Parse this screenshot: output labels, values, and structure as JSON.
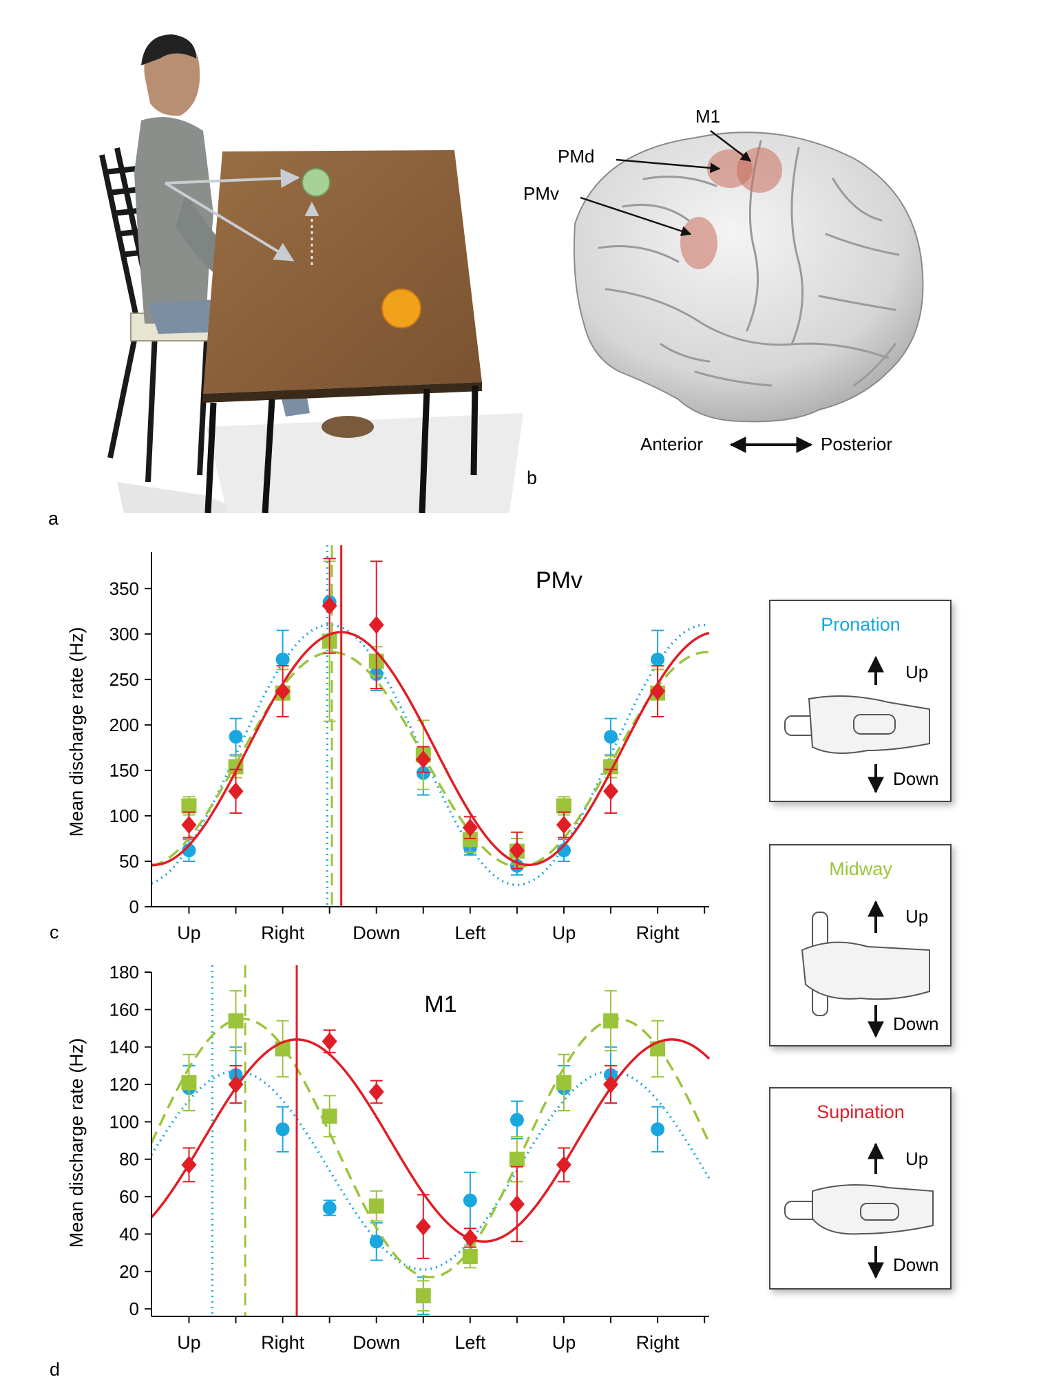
{
  "panel_letters": {
    "a": "a",
    "b": "b",
    "c": "c",
    "d": "d"
  },
  "brain": {
    "labels": {
      "m1": "M1",
      "pmd": "PMd",
      "pmv": "PMv"
    },
    "axis": {
      "anterior": "Anterior",
      "posterior": "Posterior"
    }
  },
  "insets": [
    {
      "title": "Pronation",
      "color": "#1aa7df",
      "up": "Up",
      "down": "Down"
    },
    {
      "title": "Midway",
      "color": "#9cc43b",
      "up": "Up",
      "down": "Down"
    },
    {
      "title": "Supination",
      "color": "#e11d25",
      "up": "Up",
      "down": "Down"
    }
  ],
  "colors": {
    "pronation": "#1aa7df",
    "midway": "#9cc43b",
    "supination": "#e11d25",
    "axis": "#111111"
  },
  "chart_data": [
    {
      "type": "line",
      "title": "PMv",
      "ylabel": "Mean discharge rate (Hz)",
      "ylim": [
        0,
        390
      ],
      "yticks": [
        0,
        50,
        100,
        150,
        200,
        250,
        300,
        350
      ],
      "xticks": [
        0,
        1,
        2,
        3,
        4,
        5,
        6,
        7,
        8,
        9,
        10,
        11
      ],
      "xticklabels": [
        "Up",
        "",
        "Right",
        "",
        "Down",
        "",
        "Left",
        "",
        "Up",
        "",
        "Right",
        ""
      ],
      "xlim": [
        -0.8,
        11.1
      ],
      "series": [
        {
          "name": "Pronation",
          "marker": "circle",
          "line": "dotted",
          "values": [
            62,
            187,
            272,
            335,
            256,
            147,
            65,
            45,
            62,
            187,
            272
          ],
          "errors": [
            12,
            20,
            32,
            48,
            18,
            24,
            8,
            10,
            12,
            20,
            32
          ],
          "fit": {
            "mean": 167,
            "amp": 143,
            "peak": 3.0
          },
          "peak_line": 2.95
        },
        {
          "name": "Midway",
          "marker": "square",
          "line": "dashed",
          "values": [
            111,
            154,
            235,
            292,
            270,
            167,
            74,
            61,
            111,
            154,
            235
          ],
          "errors": [
            10,
            12,
            26,
            88,
            16,
            38,
            14,
            14,
            10,
            12,
            26
          ],
          "fit": {
            "mean": 162,
            "amp": 118,
            "peak": 3.05
          },
          "peak_line": 3.05
        },
        {
          "name": "Supination",
          "marker": "diamond",
          "line": "solid",
          "values": [
            90,
            127,
            237,
            331,
            310,
            162,
            87,
            62,
            90,
            127,
            237
          ],
          "errors": [
            14,
            24,
            28,
            52,
            70,
            14,
            12,
            20,
            14,
            24,
            28
          ],
          "fit": {
            "mean": 174,
            "amp": 128,
            "peak": 3.25
          },
          "peak_line": 3.25
        }
      ]
    },
    {
      "type": "line",
      "title": "M1",
      "ylabel": "Mean discharge rate (Hz)",
      "ylim": [
        -4,
        180
      ],
      "yticks": [
        0,
        20,
        40,
        60,
        80,
        100,
        120,
        140,
        160,
        180
      ],
      "xticks": [
        0,
        1,
        2,
        3,
        4,
        5,
        6,
        7,
        8,
        9,
        10,
        11
      ],
      "xticklabels": [
        "Up",
        "",
        "Right",
        "",
        "Down",
        "",
        "Left",
        "",
        "Up",
        "",
        "Right",
        ""
      ],
      "xlim": [
        -0.8,
        11.1
      ],
      "series": [
        {
          "name": "Pronation",
          "marker": "circle",
          "line": "dotted",
          "values": [
            118,
            125,
            96,
            54,
            36,
            7,
            58,
            101,
            118,
            125,
            96
          ],
          "errors": [
            12,
            15,
            12,
            4,
            10,
            10,
            15,
            10,
            12,
            15,
            12
          ],
          "fit": {
            "mean": 74,
            "amp": 53,
            "peak": 1.0
          },
          "peak_line": 0.5
        },
        {
          "name": "Midway",
          "marker": "square",
          "line": "dashed",
          "values": [
            121,
            154,
            139,
            103,
            55,
            7,
            28,
            80,
            121,
            154,
            139
          ],
          "errors": [
            15,
            16,
            15,
            11,
            8,
            8,
            6,
            12,
            15,
            16,
            15
          ],
          "fit": {
            "mean": 86,
            "amp": 69,
            "peak": 1.15
          },
          "peak_line": 1.2
        },
        {
          "name": "Supination",
          "marker": "diamond",
          "line": "solid",
          "values": [
            77,
            120,
            null,
            143,
            116,
            44,
            38,
            56,
            77,
            120,
            null
          ],
          "errors": [
            9,
            10,
            0,
            6,
            6,
            17,
            5,
            20,
            9,
            10,
            0
          ],
          "fit": {
            "mean": 90,
            "amp": 54,
            "peak": 2.3
          },
          "peak_line": 2.3
        }
      ]
    }
  ]
}
